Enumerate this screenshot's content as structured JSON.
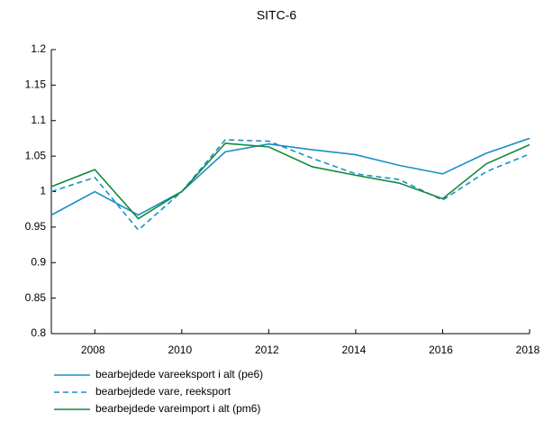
{
  "chart_data": {
    "type": "line",
    "title": "SITC-6",
    "x": [
      2007,
      2008,
      2009,
      2010,
      2011,
      2012,
      2013,
      2014,
      2015,
      2016,
      2017,
      2018
    ],
    "xlim": [
      2007,
      2018
    ],
    "xticks": [
      2008,
      2010,
      2012,
      2014,
      2016,
      2018
    ],
    "ylim": [
      0.8,
      1.2
    ],
    "yticks": [
      0.8,
      0.85,
      0.9,
      0.95,
      1,
      1.05,
      1.1,
      1.15,
      1.2
    ],
    "legend": "bottom-left",
    "series": [
      {
        "name": "bearbejdede vareeksport i alt (pe6)",
        "color": "#1a8fc9",
        "dashed": false,
        "values": [
          0.967,
          1.0,
          0.967,
          1.0,
          1.056,
          1.067,
          1.059,
          1.052,
          1.037,
          1.025,
          1.054,
          1.075
        ]
      },
      {
        "name": "bearbejdede vare, reeksport",
        "color": "#1a8fc9",
        "dashed": true,
        "values": [
          1.0,
          1.02,
          0.946,
          1.0,
          1.073,
          1.071,
          1.047,
          1.025,
          1.017,
          0.988,
          1.028,
          1.053
        ]
      },
      {
        "name": "bearbejdede vareimport i alt (pm6)",
        "color": "#138a3a",
        "dashed": false,
        "values": [
          1.007,
          1.031,
          0.962,
          1.0,
          1.068,
          1.063,
          1.035,
          1.023,
          1.012,
          0.99,
          1.039,
          1.066
        ]
      }
    ]
  }
}
